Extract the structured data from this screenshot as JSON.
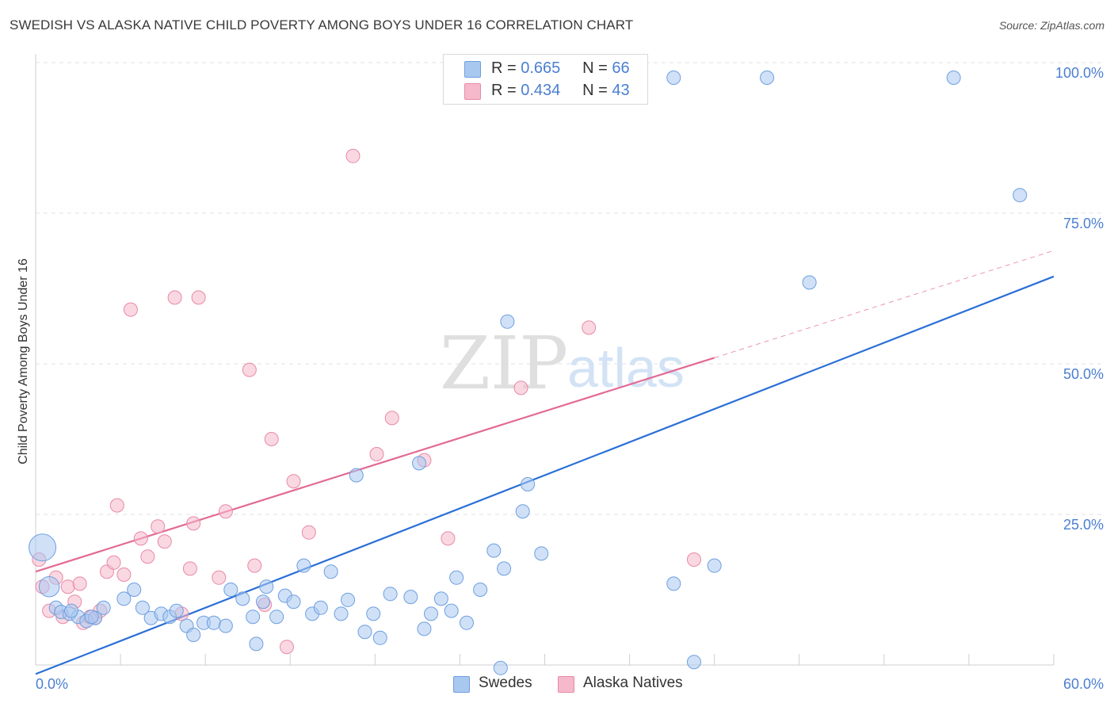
{
  "header": {
    "title": "SWEDISH VS ALASKA NATIVE CHILD POVERTY AMONG BOYS UNDER 16 CORRELATION CHART",
    "source": "Source: ZipAtlas.com"
  },
  "watermark": {
    "zip": "ZIP",
    "atlas": "atlas"
  },
  "legend": {
    "rows": [
      {
        "r_label": "R =",
        "r_value": "0.665",
        "n_label": "N =",
        "n_value": "66",
        "color": "#a9c8f0"
      },
      {
        "r_label": "R =",
        "r_value": "0.434",
        "n_label": "N =",
        "n_value": "43",
        "color": "#f6b8cb"
      }
    ]
  },
  "bottom_legend": {
    "items": [
      {
        "label": "Swedes",
        "color": "#a9c8f0"
      },
      {
        "label": "Alaska Natives",
        "color": "#f6b8cb"
      }
    ]
  },
  "chart_data": {
    "type": "scatter",
    "title": "SWEDISH VS ALASKA NATIVE CHILD POVERTY AMONG BOYS UNDER 16 CORRELATION CHART",
    "xlabel": "",
    "ylabel": "Child Poverty Among Boys Under 16",
    "xlim": [
      0,
      60
    ],
    "ylim": [
      0,
      100
    ],
    "x_tick_labels": [
      "0.0%",
      "60.0%"
    ],
    "y_tick_labels": [
      {
        "value": 25,
        "label": "25.0%"
      },
      {
        "value": 50,
        "label": "50.0%"
      },
      {
        "value": 75,
        "label": "75.0%"
      },
      {
        "value": 100,
        "label": "100.0%"
      }
    ],
    "grid": true,
    "legend_position": "top-center",
    "series": [
      {
        "name": "Swedes",
        "color": "#a9c8f0",
        "stroke": "#6d9fe0",
        "trend_color": "#2a6fd6",
        "trend": {
          "x": [
            0,
            60
          ],
          "y": [
            -1.5,
            64.5
          ]
        },
        "points": [
          {
            "x": 0.4,
            "y": 19.5,
            "s": 2
          },
          {
            "x": 0.8,
            "y": 13.0,
            "s": 1.5
          },
          {
            "x": 1.2,
            "y": 9.5,
            "s": 1
          },
          {
            "x": 1.5,
            "y": 8.8,
            "s": 1
          },
          {
            "x": 2.0,
            "y": 8.5,
            "s": 1
          },
          {
            "x": 2.5,
            "y": 8.0,
            "s": 1
          },
          {
            "x": 3.0,
            "y": 7.3,
            "s": 1
          },
          {
            "x": 3.5,
            "y": 7.8,
            "s": 1
          },
          {
            "x": 4.0,
            "y": 9.5,
            "s": 1
          },
          {
            "x": 5.2,
            "y": 11.0,
            "s": 1
          },
          {
            "x": 5.8,
            "y": 12.5,
            "s": 1
          },
          {
            "x": 6.3,
            "y": 9.5,
            "s": 1
          },
          {
            "x": 6.8,
            "y": 7.8,
            "s": 1
          },
          {
            "x": 7.4,
            "y": 8.5,
            "s": 1
          },
          {
            "x": 7.9,
            "y": 8.0,
            "s": 1
          },
          {
            "x": 8.3,
            "y": 9.0,
            "s": 1
          },
          {
            "x": 8.9,
            "y": 6.5,
            "s": 1
          },
          {
            "x": 9.3,
            "y": 5.0,
            "s": 1
          },
          {
            "x": 9.9,
            "y": 7.0,
            "s": 1
          },
          {
            "x": 10.5,
            "y": 7.0,
            "s": 1
          },
          {
            "x": 11.2,
            "y": 6.5,
            "s": 1
          },
          {
            "x": 11.5,
            "y": 12.5,
            "s": 1
          },
          {
            "x": 12.2,
            "y": 11.0,
            "s": 1
          },
          {
            "x": 12.8,
            "y": 8.0,
            "s": 1
          },
          {
            "x": 13.0,
            "y": 3.5,
            "s": 1
          },
          {
            "x": 13.4,
            "y": 10.5,
            "s": 1
          },
          {
            "x": 13.6,
            "y": 13.0,
            "s": 1
          },
          {
            "x": 14.2,
            "y": 8.0,
            "s": 1
          },
          {
            "x": 14.7,
            "y": 11.5,
            "s": 1
          },
          {
            "x": 15.2,
            "y": 10.5,
            "s": 1
          },
          {
            "x": 15.8,
            "y": 16.5,
            "s": 1
          },
          {
            "x": 16.3,
            "y": 8.5,
            "s": 1
          },
          {
            "x": 16.8,
            "y": 9.5,
            "s": 1
          },
          {
            "x": 17.4,
            "y": 15.5,
            "s": 1
          },
          {
            "x": 18.0,
            "y": 8.5,
            "s": 1
          },
          {
            "x": 18.4,
            "y": 10.8,
            "s": 1
          },
          {
            "x": 18.9,
            "y": 31.5,
            "s": 1
          },
          {
            "x": 19.4,
            "y": 5.5,
            "s": 1
          },
          {
            "x": 19.9,
            "y": 8.5,
            "s": 1
          },
          {
            "x": 20.3,
            "y": 4.5,
            "s": 1
          },
          {
            "x": 20.9,
            "y": 11.8,
            "s": 1
          },
          {
            "x": 22.1,
            "y": 11.3,
            "s": 1
          },
          {
            "x": 22.6,
            "y": 33.5,
            "s": 1
          },
          {
            "x": 22.9,
            "y": 6.0,
            "s": 1
          },
          {
            "x": 23.3,
            "y": 8.5,
            "s": 1
          },
          {
            "x": 23.9,
            "y": 11.0,
            "s": 1
          },
          {
            "x": 24.5,
            "y": 9.0,
            "s": 1
          },
          {
            "x": 24.8,
            "y": 14.5,
            "s": 1
          },
          {
            "x": 25.4,
            "y": 7.0,
            "s": 1
          },
          {
            "x": 26.2,
            "y": 12.5,
            "s": 1
          },
          {
            "x": 27.0,
            "y": 19.0,
            "s": 1
          },
          {
            "x": 27.4,
            "y": -0.5,
            "s": 1
          },
          {
            "x": 27.6,
            "y": 16.0,
            "s": 1
          },
          {
            "x": 27.8,
            "y": 57.0,
            "s": 1
          },
          {
            "x": 28.7,
            "y": 25.5,
            "s": 1
          },
          {
            "x": 29.0,
            "y": 30.0,
            "s": 1
          },
          {
            "x": 29.8,
            "y": 18.5,
            "s": 1
          },
          {
            "x": 37.6,
            "y": 13.5,
            "s": 1
          },
          {
            "x": 37.6,
            "y": 97.5,
            "s": 1
          },
          {
            "x": 38.8,
            "y": 0.5,
            "s": 1
          },
          {
            "x": 40.0,
            "y": 16.5,
            "s": 1
          },
          {
            "x": 43.1,
            "y": 97.5,
            "s": 1
          },
          {
            "x": 45.6,
            "y": 63.5,
            "s": 1
          },
          {
            "x": 54.1,
            "y": 97.5,
            "s": 1
          },
          {
            "x": 58.0,
            "y": 78.0,
            "s": 1
          },
          {
            "x": 2.1,
            "y": 9.0,
            "s": 1
          },
          {
            "x": 3.3,
            "y": 8.0,
            "s": 1
          }
        ]
      },
      {
        "name": "Alaska Natives",
        "color": "#f6b8cb",
        "stroke": "#e889a7",
        "trend_color": "#e36a95",
        "trend": {
          "x": [
            0,
            40
          ],
          "y": [
            15.5,
            51.0
          ]
        },
        "trend_dashed": {
          "x": [
            40,
            60
          ],
          "y": [
            51.0,
            68.8
          ]
        },
        "points": [
          {
            "x": 0.2,
            "y": 17.5,
            "s": 1
          },
          {
            "x": 0.4,
            "y": 13.0,
            "s": 1
          },
          {
            "x": 0.8,
            "y": 9.0,
            "s": 1
          },
          {
            "x": 1.2,
            "y": 14.5,
            "s": 1
          },
          {
            "x": 1.6,
            "y": 8.0,
            "s": 1
          },
          {
            "x": 1.9,
            "y": 13.0,
            "s": 1
          },
          {
            "x": 2.3,
            "y": 10.5,
            "s": 1
          },
          {
            "x": 2.6,
            "y": 13.5,
            "s": 1
          },
          {
            "x": 2.8,
            "y": 7.0,
            "s": 1
          },
          {
            "x": 3.2,
            "y": 8.0,
            "s": 1
          },
          {
            "x": 3.5,
            "y": 7.8,
            "s": 1
          },
          {
            "x": 3.8,
            "y": 9.0,
            "s": 1
          },
          {
            "x": 4.2,
            "y": 15.5,
            "s": 1
          },
          {
            "x": 4.6,
            "y": 17.0,
            "s": 1
          },
          {
            "x": 4.8,
            "y": 26.5,
            "s": 1
          },
          {
            "x": 5.2,
            "y": 15.0,
            "s": 1
          },
          {
            "x": 5.6,
            "y": 59.0,
            "s": 1
          },
          {
            "x": 6.2,
            "y": 21.0,
            "s": 1
          },
          {
            "x": 6.6,
            "y": 18.0,
            "s": 1
          },
          {
            "x": 7.2,
            "y": 23.0,
            "s": 1
          },
          {
            "x": 7.6,
            "y": 20.5,
            "s": 1
          },
          {
            "x": 8.2,
            "y": 61.0,
            "s": 1
          },
          {
            "x": 8.6,
            "y": 8.5,
            "s": 1
          },
          {
            "x": 9.1,
            "y": 16.0,
            "s": 1
          },
          {
            "x": 9.3,
            "y": 23.5,
            "s": 1
          },
          {
            "x": 9.6,
            "y": 61.0,
            "s": 1
          },
          {
            "x": 10.8,
            "y": 14.5,
            "s": 1
          },
          {
            "x": 11.2,
            "y": 25.5,
            "s": 1
          },
          {
            "x": 12.6,
            "y": 49.0,
            "s": 1
          },
          {
            "x": 12.9,
            "y": 16.5,
            "s": 1
          },
          {
            "x": 13.5,
            "y": 10.0,
            "s": 1
          },
          {
            "x": 13.9,
            "y": 37.5,
            "s": 1
          },
          {
            "x": 14.8,
            "y": 3.0,
            "s": 1
          },
          {
            "x": 15.2,
            "y": 30.5,
            "s": 1
          },
          {
            "x": 16.1,
            "y": 22.0,
            "s": 1
          },
          {
            "x": 18.7,
            "y": 84.5,
            "s": 1
          },
          {
            "x": 20.1,
            "y": 35.0,
            "s": 1
          },
          {
            "x": 21.0,
            "y": 41.0,
            "s": 1
          },
          {
            "x": 22.9,
            "y": 34.0,
            "s": 1
          },
          {
            "x": 24.3,
            "y": 21.0,
            "s": 1
          },
          {
            "x": 28.6,
            "y": 46.0,
            "s": 1
          },
          {
            "x": 32.6,
            "y": 56.0,
            "s": 1
          },
          {
            "x": 38.8,
            "y": 17.5,
            "s": 1
          }
        ]
      }
    ]
  }
}
